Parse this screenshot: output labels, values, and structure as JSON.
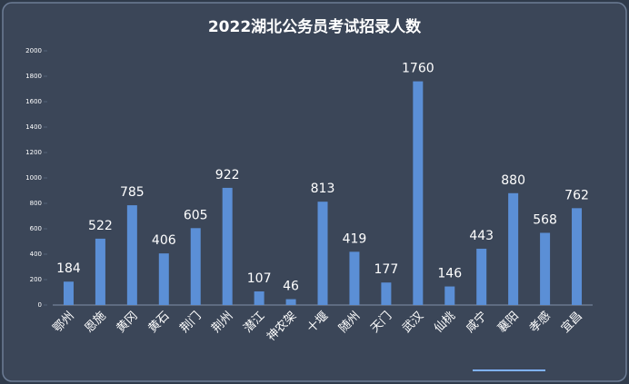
{
  "chart_data": {
    "type": "bar",
    "title": "2022湖北公务员考试招录人数",
    "categories": [
      "鄂州",
      "恩施",
      "黄冈",
      "黄石",
      "荆门",
      "荆州",
      "潜江",
      "神农架",
      "十堰",
      "随州",
      "天门",
      "武汉",
      "仙桃",
      "咸宁",
      "襄阳",
      "孝感",
      "宜昌"
    ],
    "values": [
      184,
      522,
      785,
      406,
      605,
      922,
      107,
      46,
      813,
      419,
      177,
      1760,
      146,
      443,
      880,
      568,
      762
    ],
    "color": "#5b8fd6",
    "ylim": [
      0,
      2000
    ],
    "yticks": [
      0,
      200,
      400,
      600,
      800,
      1000,
      1200,
      1400,
      1600,
      1800,
      2000
    ],
    "grid": false
  }
}
